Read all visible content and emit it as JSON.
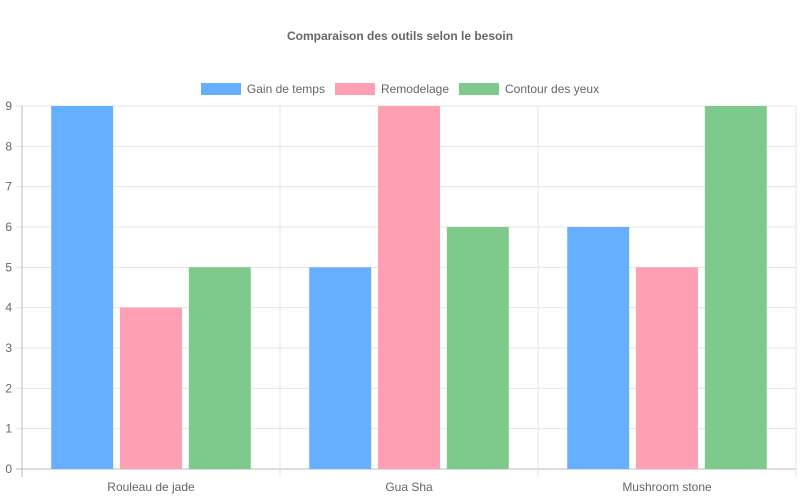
{
  "chart_data": {
    "type": "bar",
    "title": "Comparaison des outils selon le besoin",
    "categories": [
      "Rouleau de jade",
      "Gua Sha",
      "Mushroom stone"
    ],
    "series": [
      {
        "name": "Gain de temps",
        "values": [
          9,
          5,
          6
        ],
        "color": "#66aeff"
      },
      {
        "name": "Remodelage",
        "values": [
          4,
          9,
          5
        ],
        "color": "#ff9fb4"
      },
      {
        "name": "Contour des yeux",
        "values": [
          5,
          6,
          9
        ],
        "color": "#7eca8c"
      }
    ],
    "xlabel": "",
    "ylabel": "",
    "ylim": [
      0,
      9
    ],
    "yticks": [
      "0",
      "1",
      "2",
      "3",
      "4",
      "5",
      "6",
      "7",
      "8",
      "9"
    ],
    "grid": true,
    "legend_position": "top"
  }
}
